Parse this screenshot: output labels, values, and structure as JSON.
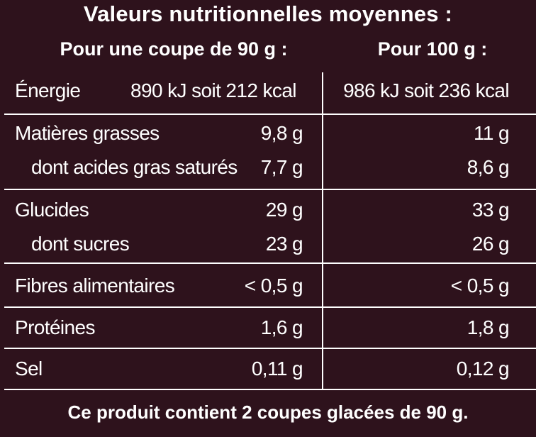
{
  "title": "Valeurs nutritionnelles moyennes :",
  "columns": {
    "per_portion": "Pour une coupe de 90 g :",
    "per_100g": "Pour 100 g :"
  },
  "rows": {
    "energy": {
      "label": "Énergie",
      "portion": "890 kJ soit 212 kcal",
      "per100": "986 kJ soit 236 kcal"
    },
    "fat": {
      "label": "Matières grasses",
      "portion": "9,8 g",
      "per100": "11 g"
    },
    "saturated": {
      "label": "dont acides gras saturés",
      "portion": "7,7 g",
      "per100": "8,6 g"
    },
    "carbs": {
      "label": "Glucides",
      "portion": "29 g",
      "per100": "33 g"
    },
    "sugars": {
      "label": "dont sucres",
      "portion": "23 g",
      "per100": "26 g"
    },
    "fibre": {
      "label": "Fibres alimentaires",
      "portion": "< 0,5 g",
      "per100": "< 0,5 g"
    },
    "protein": {
      "label": "Protéines",
      "portion": "1,6 g",
      "per100": "1,8 g"
    },
    "salt": {
      "label": "Sel",
      "portion": "0,11 g",
      "per100": "0,12 g"
    }
  },
  "footer": "Ce produit contient 2 coupes glacées de 90 g.",
  "colors": {
    "background": "#2e121c",
    "text": "#ffffff"
  }
}
